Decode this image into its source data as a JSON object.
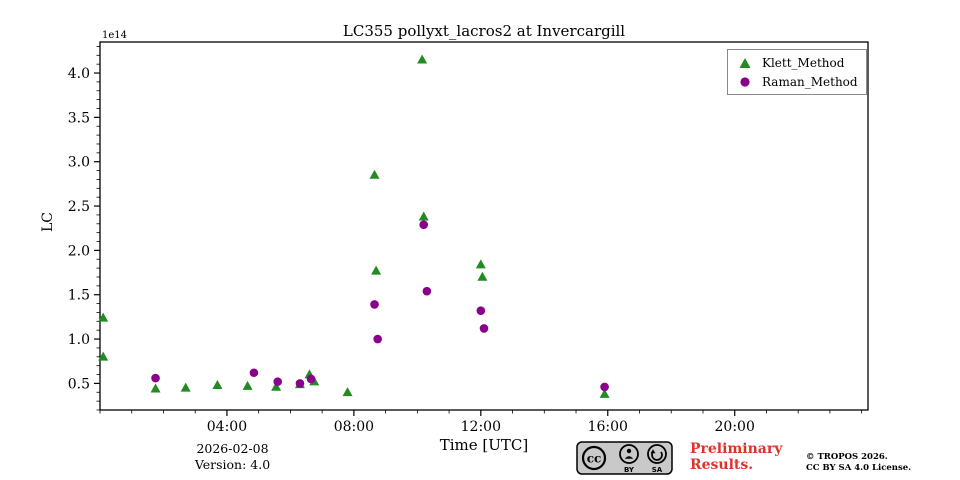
{
  "chart_data": {
    "type": "scatter",
    "title": "LC355 pollyxt_lacros2 at Invercargill",
    "xlabel": "Time [UTC]",
    "ylabel": "LC",
    "y_scale_offset_text": "1e14",
    "xlim_hours": [
      0,
      24.2
    ],
    "ylim": [
      0.2,
      4.35
    ],
    "x_tick_hours": [
      4,
      8,
      12,
      16,
      20
    ],
    "x_tick_labels": [
      "04:00",
      "08:00",
      "12:00",
      "16:00",
      "20:00"
    ],
    "y_tick_values": [
      0.5,
      1.0,
      1.5,
      2.0,
      2.5,
      3.0,
      3.5,
      4.0
    ],
    "y_tick_labels": [
      "0.5",
      "1.0",
      "1.5",
      "2.0",
      "2.5",
      "3.0",
      "3.5",
      "4.0"
    ],
    "grid": false,
    "legend_position": "upper right",
    "point_units": {
      "x": "hour of day UTC",
      "y": "LC in units of 1e14"
    },
    "series": [
      {
        "name": "Klett_Method",
        "marker": "triangle",
        "color": "#228b22",
        "points": [
          [
            0.1,
            1.24
          ],
          [
            0.1,
            0.8
          ],
          [
            1.75,
            0.44
          ],
          [
            2.7,
            0.45
          ],
          [
            3.7,
            0.48
          ],
          [
            4.65,
            0.47
          ],
          [
            5.55,
            0.46
          ],
          [
            6.3,
            0.49
          ],
          [
            6.6,
            0.6
          ],
          [
            6.75,
            0.52
          ],
          [
            7.8,
            0.4
          ],
          [
            8.65,
            2.85
          ],
          [
            8.7,
            1.77
          ],
          [
            10.15,
            4.15
          ],
          [
            10.2,
            2.38
          ],
          [
            12.0,
            1.84
          ],
          [
            12.05,
            1.7
          ],
          [
            15.9,
            0.38
          ]
        ]
      },
      {
        "name": "Raman_Method",
        "marker": "circle",
        "color": "#8b008b",
        "points": [
          [
            1.75,
            0.56
          ],
          [
            4.85,
            0.62
          ],
          [
            5.6,
            0.52
          ],
          [
            6.3,
            0.5
          ],
          [
            6.65,
            0.55
          ],
          [
            8.65,
            1.39
          ],
          [
            8.75,
            1.0
          ],
          [
            10.2,
            2.29
          ],
          [
            10.3,
            1.54
          ],
          [
            12.0,
            1.32
          ],
          [
            12.1,
            1.12
          ],
          [
            15.9,
            0.46
          ]
        ]
      }
    ]
  },
  "footer": {
    "date": "2026-02-08",
    "version": "Version: 4.0",
    "preliminary_line1": "Preliminary",
    "preliminary_line2": "Results.",
    "preliminary_color": "#e0312d",
    "copyright_line1": "© TROPOS 2026.",
    "copyright_line2": "CC BY SA 4.0 License.",
    "cc_badge_by_label": "BY",
    "cc_badge_sa_label": "SA"
  }
}
